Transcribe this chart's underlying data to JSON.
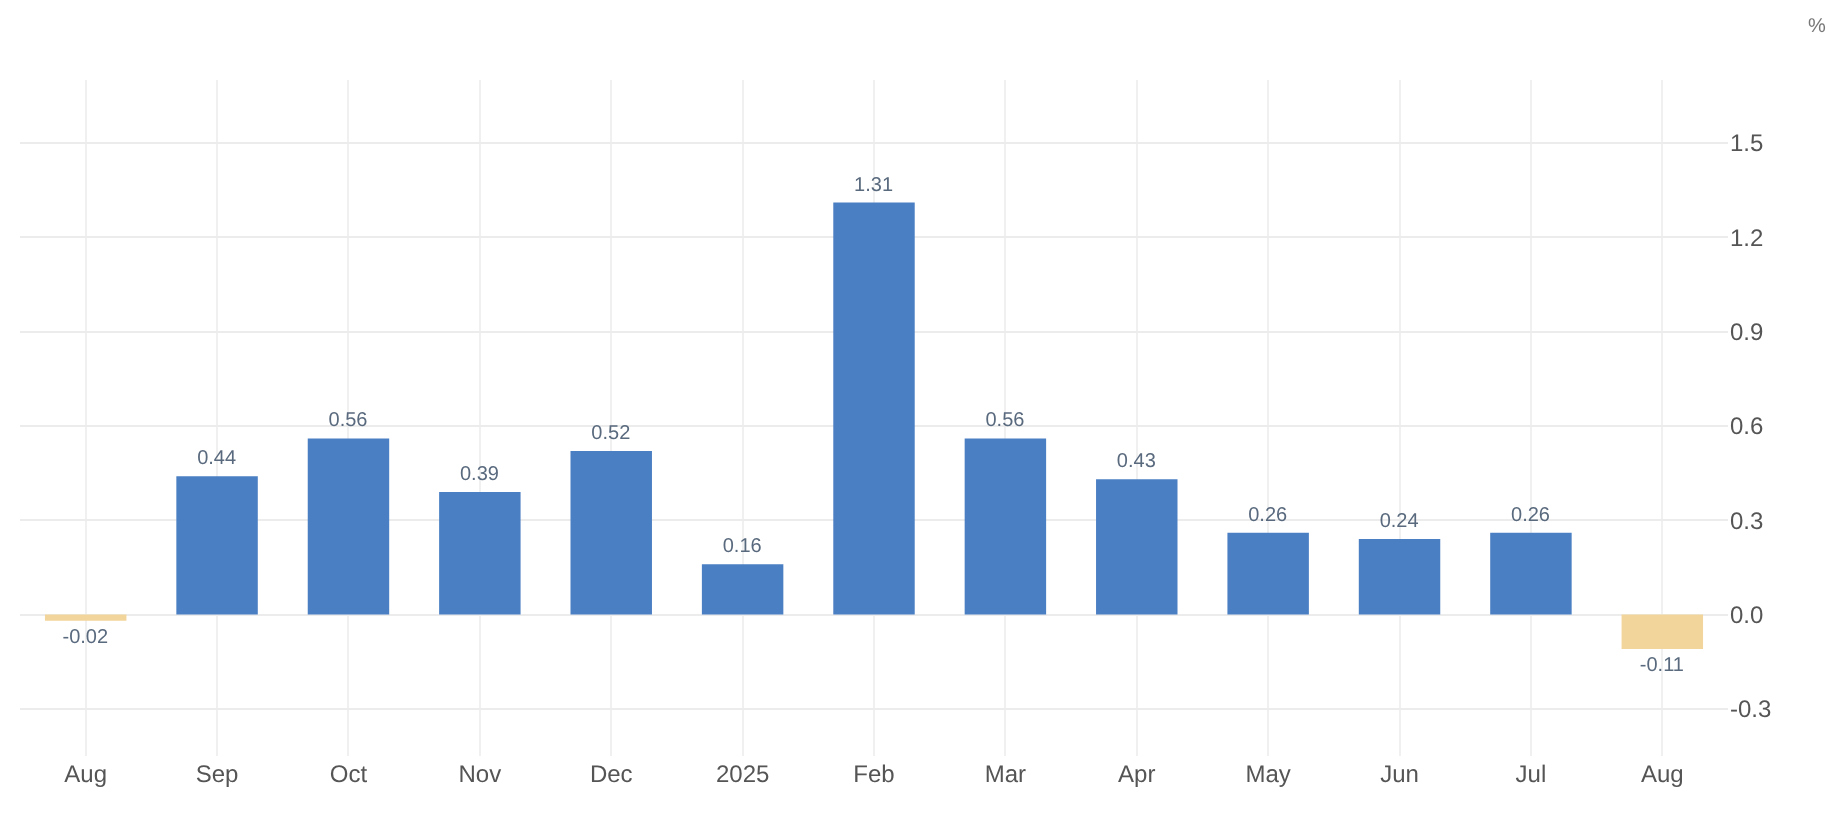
{
  "chart_data": {
    "type": "bar",
    "ylabel": "%",
    "categories": [
      "Aug",
      "Sep",
      "Oct",
      "Nov",
      "Dec",
      "2025",
      "Feb",
      "Mar",
      "Apr",
      "May",
      "Jun",
      "Jul",
      "Aug"
    ],
    "values": [
      -0.02,
      0.44,
      0.56,
      0.39,
      0.52,
      0.16,
      1.31,
      0.56,
      0.43,
      0.26,
      0.24,
      0.26,
      -0.11
    ],
    "colors": [
      "#f2d59a",
      "#4b7fc3",
      "#4b7fc3",
      "#4b7fc3",
      "#4b7fc3",
      "#4b7fc3",
      "#4b7fc3",
      "#4b7fc3",
      "#4b7fc3",
      "#4b7fc3",
      "#4b7fc3",
      "#4b7fc3",
      "#f2d59a"
    ],
    "ylim": [
      -0.45,
      1.7
    ],
    "yticks": [
      {
        "value": -0.3,
        "label": "-0.3"
      },
      {
        "value": 0,
        "label": "0.0"
      },
      {
        "value": 0.3,
        "label": "0.3"
      },
      {
        "value": 0.6,
        "label": "0.6"
      },
      {
        "value": 0.9,
        "label": "0.9"
      },
      {
        "value": 1.2,
        "label": "1.2"
      },
      {
        "value": 1.5,
        "label": "1.5"
      }
    ],
    "grid": true,
    "legend": false,
    "data_labels": true
  }
}
